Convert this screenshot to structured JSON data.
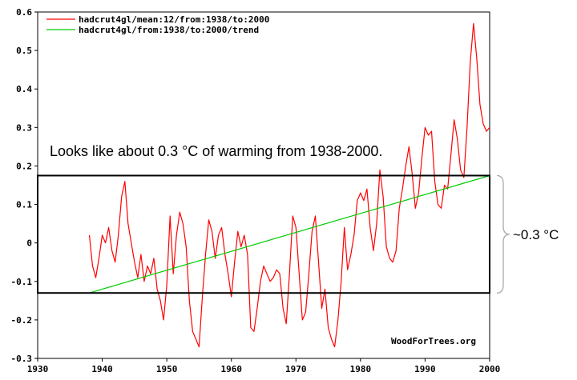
{
  "chart_data": {
    "type": "line",
    "xlim": [
      1930,
      2000
    ],
    "ylim": [
      -0.3,
      0.6
    ],
    "x_ticks": [
      1930,
      1940,
      1950,
      1960,
      1970,
      1980,
      1990,
      2000
    ],
    "x_tick_labels": [
      "1930",
      "1940",
      "1950",
      "1960",
      "1970",
      "1980",
      "1990",
      "2000"
    ],
    "y_ticks": [
      -0.3,
      -0.2,
      -0.1,
      0,
      0.1,
      0.2,
      0.3,
      0.4,
      0.5,
      0.6
    ],
    "y_tick_labels": [
      "-0.3",
      "-0.2",
      "-0.1",
      "0",
      "0.1",
      "0.2",
      "0.3",
      "0.4",
      "0.5",
      "0.6"
    ],
    "series": [
      {
        "name": "hadcrut4gl/mean:12/from:1938/to:2000",
        "color": "#ff0000",
        "x": [
          1938.0,
          1938.5,
          1939.0,
          1939.5,
          1940.0,
          1940.5,
          1941.0,
          1941.5,
          1942.0,
          1942.5,
          1943.0,
          1943.5,
          1944.0,
          1944.5,
          1945.0,
          1945.5,
          1946.0,
          1946.5,
          1947.0,
          1947.5,
          1948.0,
          1948.5,
          1949.0,
          1949.5,
          1950.0,
          1950.5,
          1951.0,
          1951.5,
          1952.0,
          1952.5,
          1953.0,
          1953.5,
          1954.0,
          1954.5,
          1955.0,
          1955.5,
          1956.0,
          1956.5,
          1957.0,
          1957.5,
          1958.0,
          1958.5,
          1959.0,
          1959.5,
          1960.0,
          1960.5,
          1961.0,
          1961.5,
          1962.0,
          1962.5,
          1963.0,
          1963.5,
          1964.0,
          1964.5,
          1965.0,
          1965.5,
          1966.0,
          1966.5,
          1967.0,
          1967.5,
          1968.0,
          1968.5,
          1969.0,
          1969.5,
          1970.0,
          1970.5,
          1971.0,
          1971.5,
          1972.0,
          1972.5,
          1973.0,
          1973.5,
          1974.0,
          1974.5,
          1975.0,
          1975.5,
          1976.0,
          1976.5,
          1977.0,
          1977.5,
          1978.0,
          1978.5,
          1979.0,
          1979.5,
          1980.0,
          1980.5,
          1981.0,
          1981.5,
          1982.0,
          1982.5,
          1983.0,
          1983.5,
          1984.0,
          1984.5,
          1985.0,
          1985.5,
          1986.0,
          1986.5,
          1987.0,
          1987.5,
          1988.0,
          1988.5,
          1989.0,
          1989.5,
          1990.0,
          1990.5,
          1991.0,
          1991.5,
          1992.0,
          1992.5,
          1993.0,
          1993.5,
          1994.0,
          1994.5,
          1995.0,
          1995.5,
          1996.0,
          1996.5,
          1997.0,
          1997.5,
          1998.0,
          1998.5,
          1999.0,
          1999.5,
          2000.0
        ],
        "y": [
          0.02,
          -0.06,
          -0.09,
          -0.04,
          0.02,
          0.0,
          0.04,
          -0.02,
          -0.05,
          0.02,
          0.12,
          0.16,
          0.05,
          0.0,
          -0.05,
          -0.09,
          -0.03,
          -0.1,
          -0.06,
          -0.08,
          -0.04,
          -0.12,
          -0.15,
          -0.2,
          -0.11,
          0.07,
          -0.08,
          0.02,
          0.08,
          0.05,
          -0.01,
          -0.15,
          -0.23,
          -0.25,
          -0.27,
          -0.14,
          -0.03,
          0.06,
          0.03,
          -0.04,
          0.02,
          0.04,
          -0.03,
          -0.08,
          -0.14,
          -0.05,
          0.03,
          -0.01,
          0.02,
          -0.03,
          -0.22,
          -0.23,
          -0.17,
          -0.1,
          -0.06,
          -0.08,
          -0.1,
          -0.09,
          -0.07,
          -0.08,
          -0.17,
          -0.21,
          -0.08,
          0.07,
          0.04,
          -0.08,
          -0.2,
          -0.18,
          -0.08,
          0.03,
          0.07,
          -0.05,
          -0.17,
          -0.12,
          -0.22,
          -0.25,
          -0.27,
          -0.2,
          -0.1,
          0.04,
          -0.07,
          -0.03,
          0.02,
          0.11,
          0.13,
          0.11,
          0.14,
          0.04,
          -0.02,
          0.05,
          0.19,
          0.12,
          -0.01,
          -0.04,
          -0.05,
          -0.02,
          0.09,
          0.14,
          0.2,
          0.25,
          0.18,
          0.09,
          0.13,
          0.22,
          0.3,
          0.28,
          0.29,
          0.16,
          0.1,
          0.09,
          0.15,
          0.14,
          0.23,
          0.32,
          0.27,
          0.19,
          0.17,
          0.3,
          0.47,
          0.57,
          0.48,
          0.36,
          0.31,
          0.29,
          0.3
        ]
      },
      {
        "name": "hadcrut4gl/from:1938/to:2000/trend",
        "color": "#00cc00",
        "x": [
          1938,
          2000
        ],
        "y": [
          -0.13,
          0.175
        ]
      }
    ],
    "annotations": {
      "main_text": "Looks like about 0.3 °C of warming from 1938-2000.",
      "brace_label": "~0.3 °C",
      "credit": "WoodForTrees.org",
      "box_x_range": [
        1930,
        2000
      ],
      "box_y_range": [
        -0.13,
        0.175
      ]
    },
    "legend_position": "top-left",
    "title": "",
    "xlabel": "",
    "ylabel": ""
  }
}
